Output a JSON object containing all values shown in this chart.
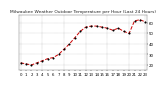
{
  "title": "Milwaukee Weather Outdoor Temperature per Hour (Last 24 Hours)",
  "hours": [
    0,
    1,
    2,
    3,
    4,
    5,
    6,
    7,
    8,
    9,
    10,
    11,
    12,
    13,
    14,
    15,
    16,
    17,
    18,
    19,
    20,
    21,
    22,
    23
  ],
  "temps": [
    22,
    21,
    20,
    22,
    24,
    26,
    27,
    30,
    35,
    40,
    46,
    52,
    56,
    57,
    57,
    56,
    55,
    53,
    55,
    52,
    50,
    62,
    63,
    61
  ],
  "line_color": "#cc0000",
  "marker_color": "#000000",
  "bg_color": "#ffffff",
  "grid_color": "#888888",
  "ylim": [
    15,
    68
  ],
  "yticks": [
    20,
    30,
    40,
    50,
    60
  ],
  "vgrid_positions": [
    0,
    4,
    8,
    12,
    16,
    20,
    23
  ],
  "title_fontsize": 3.2,
  "tick_fontsize": 2.8,
  "line_width": 0.7,
  "marker_size": 1.2
}
